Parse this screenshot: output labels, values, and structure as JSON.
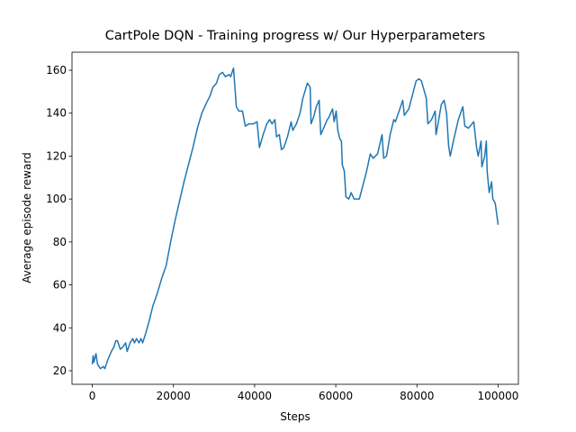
{
  "chart_data": {
    "type": "line",
    "title": "CartPole DQN - Training progress w/ Our Hyperparameters",
    "xlabel": "Steps",
    "ylabel": "Average episode reward",
    "xlim": [
      -5000,
      105000
    ],
    "ylim": [
      13.7,
      168.4
    ],
    "xticks": [
      0,
      20000,
      40000,
      60000,
      80000,
      100000
    ],
    "yticks": [
      20,
      40,
      60,
      80,
      100,
      120,
      140,
      160
    ],
    "grid": false,
    "x": [
      0,
      200,
      400,
      900,
      1300,
      2000,
      2700,
      3100,
      3800,
      4700,
      5300,
      5800,
      6200,
      6900,
      7500,
      8200,
      8600,
      9300,
      10000,
      10400,
      10900,
      11500,
      12000,
      12400,
      13100,
      14000,
      14900,
      16000,
      17100,
      18200,
      19300,
      20400,
      21500,
      22600,
      23700,
      24800,
      25900,
      27000,
      28200,
      29000,
      29700,
      30600,
      31300,
      32100,
      32800,
      33700,
      34100,
      34800,
      35500,
      36100,
      37000,
      37700,
      38600,
      39700,
      40600,
      41200,
      42100,
      43000,
      43700,
      44300,
      45000,
      45400,
      46100,
      46600,
      47200,
      48100,
      49000,
      49400,
      50300,
      51200,
      51900,
      53000,
      53700,
      53900,
      54500,
      55200,
      55900,
      56300,
      57000,
      57900,
      58300,
      59200,
      59600,
      60100,
      60500,
      61000,
      61400,
      61600,
      62100,
      62500,
      63200,
      63800,
      64500,
      65800,
      66500,
      67600,
      68500,
      69200,
      70300,
      71400,
      71800,
      72500,
      73400,
      74300,
      74700,
      75600,
      76500,
      76900,
      78000,
      79100,
      79800,
      80500,
      81100,
      82300,
      82700,
      83600,
      84500,
      84700,
      85100,
      86000,
      86700,
      87300,
      87800,
      88200,
      89100,
      90200,
      91300,
      91800,
      92700,
      94000,
      94700,
      95100,
      95800,
      96000,
      96700,
      97100,
      97300,
      97800,
      98400,
      98700,
      99300,
      100000
    ],
    "series": [
      {
        "name": "Average episode reward",
        "color": "#1f77b4",
        "values": [
          23,
          27,
          24,
          28,
          23,
          21,
          22,
          21,
          25,
          29,
          31,
          34,
          34,
          30,
          31,
          33,
          29,
          33,
          35,
          33,
          35,
          33,
          35,
          33,
          37,
          43,
          50,
          56,
          63,
          69,
          80,
          90,
          99,
          108,
          116,
          124,
          133,
          140,
          145,
          148,
          152,
          154,
          158,
          159,
          157,
          158,
          157,
          161,
          143,
          141,
          141,
          134,
          135,
          135,
          136,
          124,
          130,
          135,
          137,
          135,
          137,
          129,
          130,
          123,
          124,
          129,
          136,
          132,
          135,
          140,
          147,
          154,
          152,
          135,
          138,
          143,
          146,
          130,
          133,
          137,
          138,
          142,
          136,
          141,
          132,
          128,
          127,
          116,
          113,
          101,
          100,
          103,
          100,
          100,
          105,
          113,
          121,
          119,
          121,
          130,
          119,
          120,
          130,
          137,
          136,
          141,
          146,
          139,
          142,
          150,
          155,
          156,
          155,
          147,
          135,
          137,
          141,
          130,
          134,
          144,
          146,
          140,
          125,
          120,
          128,
          137,
          143,
          134,
          133,
          136,
          124,
          120,
          127,
          115,
          120,
          127,
          113,
          103,
          108,
          100,
          98,
          88
        ]
      }
    ]
  }
}
